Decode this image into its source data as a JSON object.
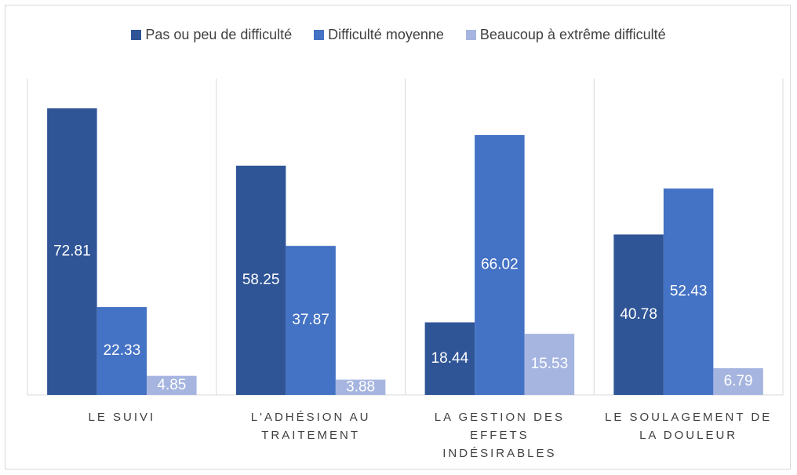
{
  "chart_data": {
    "type": "bar",
    "categories": [
      "LE SUIVI",
      "L'ADHÉSION AU TRAITEMENT",
      "LA GESTION DES EFFETS INDÉSIRABLES",
      "LE SOULAGEMENT DE LA DOULEUR"
    ],
    "series": [
      {
        "name": "Pas ou peu de difficulté",
        "color": "#2f5597",
        "values": [
          72.81,
          58.25,
          18.44,
          40.78
        ]
      },
      {
        "name": "Difficulté moyenne",
        "color": "#4472c4",
        "values": [
          22.33,
          37.87,
          66.02,
          52.43
        ]
      },
      {
        "name": "Beaucoup à extrême difficulté",
        "color": "#a6b5e0",
        "values": [
          4.85,
          3.88,
          15.53,
          6.79
        ]
      }
    ],
    "legend": "top"
  }
}
